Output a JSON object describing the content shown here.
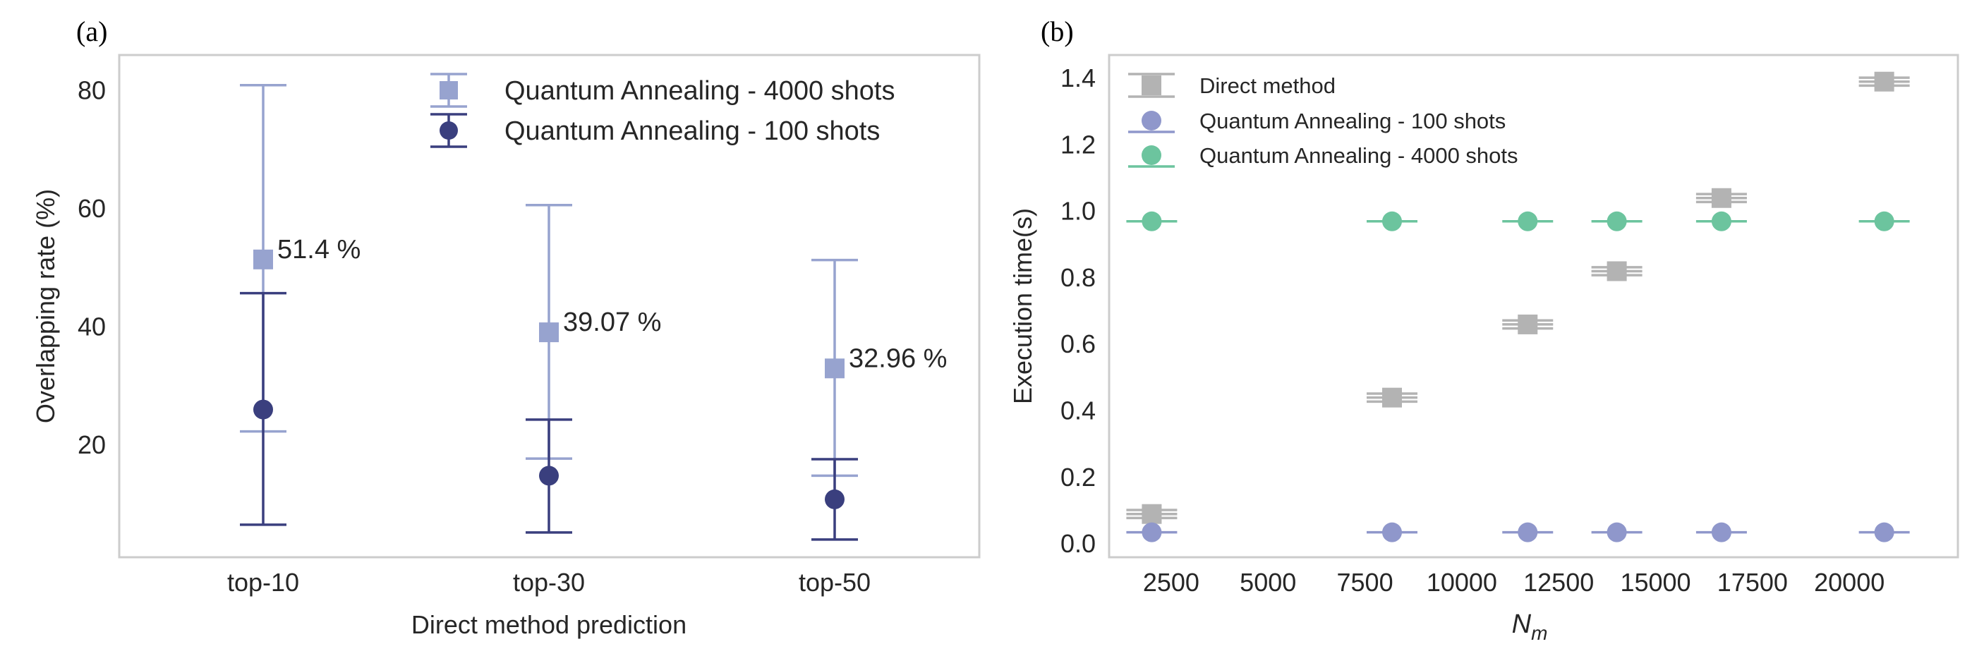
{
  "colors": {
    "qa4000": "#97A3CF",
    "qa100": "#3A3F7E",
    "direct": "#B3B3B3",
    "qa100_b": "#8F97CB",
    "qa4000_b": "#6CC49E",
    "frame": "#CCCCCC"
  },
  "chart_data": [
    {
      "panel_label": "(a)",
      "type": "scatter",
      "title": "",
      "xlabel": "Direct method prediction",
      "ylabel": "Overlapping rate (%)",
      "categories": [
        "top-10",
        "top-30",
        "top-50"
      ],
      "ylim": [
        1,
        86
      ],
      "yticks": [
        20,
        40,
        60,
        80
      ],
      "ytick_labels": [
        "20",
        "40",
        "60",
        "80"
      ],
      "grid": false,
      "legend_position": "top-right",
      "series": [
        {
          "name": "Quantum Annealing - 4000 shots",
          "marker": "square",
          "values": [
            51.4,
            39.07,
            32.96
          ],
          "err_low": [
            22.3,
            17.7,
            14.8
          ],
          "err_high": [
            80.9,
            60.6,
            51.3
          ],
          "annotations": [
            "51.4 %",
            "39.07 %",
            "32.96 %"
          ]
        },
        {
          "name": "Quantum Annealing - 100 shots",
          "marker": "circle",
          "values": [
            26.0,
            14.8,
            10.8
          ],
          "err_low": [
            6.5,
            5.2,
            4.0
          ],
          "err_high": [
            45.7,
            24.3,
            17.6
          ],
          "annotations": [
            "",
            "",
            ""
          ]
        }
      ]
    },
    {
      "panel_label": "(b)",
      "type": "scatter",
      "title": "",
      "xlabel": "N",
      "xlabel_sub": "m",
      "ylabel": "Execution time(s)",
      "xlim": [
        900,
        22800
      ],
      "ylim": [
        -0.04,
        1.47
      ],
      "xticks": [
        2500,
        5000,
        7500,
        10000,
        12500,
        15000,
        17500,
        20000
      ],
      "xtick_labels": [
        "2500",
        "5000",
        "7500",
        "10000",
        "12500",
        "15000",
        "17500",
        "20000"
      ],
      "yticks": [
        0.0,
        0.2,
        0.4,
        0.6,
        0.8,
        1.0,
        1.2,
        1.4
      ],
      "ytick_labels": [
        "0.0",
        "0.2",
        "0.4",
        "0.6",
        "0.8",
        "1.0",
        "1.2",
        "1.4"
      ],
      "grid": false,
      "legend_position": "top-left",
      "x": [
        2000,
        8200,
        11700,
        14000,
        16700,
        20900
      ],
      "series": [
        {
          "name": "Direct method",
          "marker": "square",
          "values": [
            0.09,
            0.44,
            0.66,
            0.82,
            1.04,
            1.39
          ],
          "err": [
            0.012,
            0.012,
            0.012,
            0.012,
            0.012,
            0.012
          ]
        },
        {
          "name": "Quantum Annealing - 100 shots",
          "marker": "circle",
          "values": [
            0.035,
            0.035,
            0.035,
            0.035,
            0.035,
            0.035
          ],
          "err": [
            0,
            0,
            0,
            0,
            0,
            0
          ]
        },
        {
          "name": "Quantum Annealing - 4000 shots",
          "marker": "circle",
          "values": [
            0.97,
            0.97,
            0.97,
            0.97,
            0.97,
            0.97
          ],
          "err": [
            0,
            0,
            0,
            0,
            0,
            0
          ]
        }
      ]
    }
  ]
}
